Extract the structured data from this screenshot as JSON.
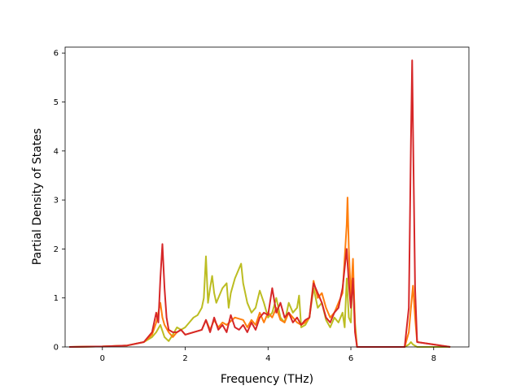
{
  "chart_data": {
    "type": "line",
    "xlabel": "Frequency (THz)",
    "ylabel": "Partial Density of States",
    "xlim": [
      -0.9,
      8.85
    ],
    "ylim": [
      0,
      6.12
    ],
    "x_ticks": [
      "0",
      "2",
      "4",
      "6",
      "8"
    ],
    "y_ticks": [
      "0",
      "1",
      "2",
      "3",
      "4",
      "5",
      "6"
    ],
    "grid": false,
    "series": [
      {
        "color": "#bcbd22",
        "x": [
          -0.8,
          0.0,
          0.6,
          1.0,
          1.2,
          1.3,
          1.4,
          1.5,
          1.6,
          1.7,
          1.8,
          1.9,
          2.0,
          2.1,
          2.2,
          2.3,
          2.4,
          2.45,
          2.5,
          2.55,
          2.6,
          2.65,
          2.7,
          2.75,
          2.8,
          2.9,
          3.0,
          3.05,
          3.1,
          3.2,
          3.3,
          3.35,
          3.4,
          3.5,
          3.6,
          3.7,
          3.8,
          3.9,
          4.0,
          4.1,
          4.2,
          4.3,
          4.4,
          4.5,
          4.6,
          4.7,
          4.75,
          4.8,
          4.9,
          5.0,
          5.1,
          5.2,
          5.3,
          5.4,
          5.5,
          5.6,
          5.7,
          5.8,
          5.85,
          5.9,
          5.95,
          6.0,
          6.05,
          6.1,
          6.15,
          7.3,
          7.4,
          7.45,
          7.5,
          7.6,
          8.4
        ],
        "y": [
          0,
          0.01,
          0.03,
          0.1,
          0.2,
          0.3,
          0.45,
          0.2,
          0.12,
          0.25,
          0.4,
          0.35,
          0.4,
          0.5,
          0.6,
          0.65,
          0.8,
          1.0,
          1.85,
          0.9,
          1.2,
          1.45,
          1.1,
          0.9,
          1.0,
          1.2,
          1.3,
          0.8,
          1.1,
          1.4,
          1.6,
          1.7,
          1.3,
          0.9,
          0.7,
          0.8,
          1.15,
          0.9,
          0.6,
          0.7,
          1.0,
          0.6,
          0.5,
          0.9,
          0.7,
          0.8,
          1.05,
          0.4,
          0.45,
          0.6,
          1.2,
          0.8,
          0.9,
          0.55,
          0.4,
          0.6,
          0.5,
          0.7,
          0.4,
          1.4,
          0.6,
          0.5,
          1.6,
          0.5,
          0,
          0,
          0.05,
          0.1,
          0.05,
          0,
          0
        ]
      },
      {
        "color": "#ff7f0e",
        "x": [
          -0.8,
          0.0,
          0.6,
          1.0,
          1.2,
          1.3,
          1.4,
          1.45,
          1.5,
          1.6,
          1.7,
          1.8,
          1.9,
          2.0,
          2.2,
          2.4,
          2.5,
          2.6,
          2.7,
          2.8,
          2.9,
          3.0,
          3.2,
          3.4,
          3.5,
          3.6,
          3.7,
          3.8,
          3.9,
          4.0,
          4.1,
          4.2,
          4.3,
          4.4,
          4.5,
          4.6,
          4.7,
          4.8,
          4.9,
          5.0,
          5.1,
          5.2,
          5.3,
          5.4,
          5.5,
          5.6,
          5.7,
          5.8,
          5.9,
          5.92,
          5.95,
          6.0,
          6.05,
          6.1,
          6.15,
          7.3,
          7.4,
          7.45,
          7.5,
          7.55,
          7.6,
          8.4
        ],
        "y": [
          0,
          0.01,
          0.03,
          0.1,
          0.25,
          0.5,
          0.9,
          0.6,
          0.45,
          0.3,
          0.2,
          0.3,
          0.35,
          0.25,
          0.3,
          0.35,
          0.55,
          0.35,
          0.55,
          0.4,
          0.5,
          0.45,
          0.6,
          0.55,
          0.4,
          0.55,
          0.45,
          0.7,
          0.5,
          0.7,
          0.6,
          0.8,
          0.55,
          0.5,
          0.7,
          0.6,
          0.5,
          0.45,
          0.5,
          0.6,
          1.35,
          1.0,
          1.1,
          0.8,
          0.6,
          0.7,
          0.9,
          1.1,
          2.5,
          3.05,
          2.0,
          1.0,
          1.8,
          0.4,
          0,
          0,
          0.3,
          0.8,
          1.25,
          0.6,
          0.1,
          0
        ]
      },
      {
        "color": "#d62728",
        "x": [
          -0.8,
          0.0,
          0.6,
          1.0,
          1.2,
          1.3,
          1.35,
          1.4,
          1.45,
          1.5,
          1.55,
          1.6,
          1.7,
          1.8,
          1.9,
          2.0,
          2.2,
          2.4,
          2.5,
          2.6,
          2.7,
          2.8,
          2.9,
          3.0,
          3.1,
          3.2,
          3.3,
          3.4,
          3.5,
          3.6,
          3.7,
          3.8,
          3.9,
          4.0,
          4.1,
          4.2,
          4.3,
          4.4,
          4.5,
          4.6,
          4.7,
          4.8,
          4.9,
          5.0,
          5.1,
          5.2,
          5.3,
          5.4,
          5.5,
          5.6,
          5.7,
          5.8,
          5.9,
          5.95,
          6.0,
          6.05,
          6.1,
          6.15,
          7.3,
          7.4,
          7.45,
          7.48,
          7.5,
          7.55,
          7.6,
          8.4
        ],
        "y": [
          0,
          0.01,
          0.03,
          0.1,
          0.3,
          0.7,
          0.5,
          1.4,
          2.1,
          1.2,
          0.6,
          0.35,
          0.3,
          0.3,
          0.35,
          0.25,
          0.3,
          0.35,
          0.55,
          0.3,
          0.6,
          0.35,
          0.45,
          0.3,
          0.65,
          0.4,
          0.35,
          0.45,
          0.3,
          0.5,
          0.35,
          0.6,
          0.7,
          0.65,
          1.2,
          0.7,
          0.9,
          0.6,
          0.7,
          0.5,
          0.6,
          0.45,
          0.55,
          0.6,
          1.3,
          1.1,
          0.9,
          0.6,
          0.5,
          0.7,
          0.8,
          1.2,
          2.0,
          1.3,
          0.8,
          1.4,
          0.3,
          0,
          0,
          0.8,
          4.2,
          5.85,
          4.5,
          1.2,
          0.1,
          0
        ]
      }
    ]
  }
}
